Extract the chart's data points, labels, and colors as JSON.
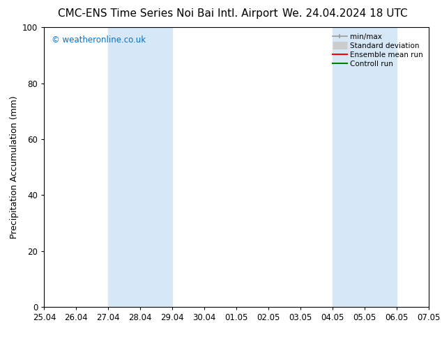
{
  "title_left": "CMC-ENS Time Series Noi Bai Intl. Airport",
  "title_right": "We. 24.04.2024 18 UTC",
  "ylabel": "Precipitation Accumulation (mm)",
  "xlim_start": 0,
  "xlim_end": 12,
  "ylim": [
    0,
    100
  ],
  "yticks": [
    0,
    20,
    40,
    60,
    80,
    100
  ],
  "xtick_labels": [
    "25.04",
    "26.04",
    "27.04",
    "28.04",
    "29.04",
    "30.04",
    "01.05",
    "02.05",
    "03.05",
    "04.05",
    "05.05",
    "06.05",
    "07.05"
  ],
  "shaded_regions": [
    {
      "x_start": 2,
      "x_end": 4,
      "color": "#d6e8f7"
    },
    {
      "x_start": 9,
      "x_end": 11,
      "color": "#d6e8f7"
    }
  ],
  "watermark_text": "© weatheronline.co.uk",
  "watermark_color": "#0070cc",
  "legend_labels": [
    "min/max",
    "Standard deviation",
    "Ensemble mean run",
    "Controll run"
  ],
  "legend_colors": [
    "#999999",
    "#cccccc",
    "#ff0000",
    "#008000"
  ],
  "bg_color": "#ffffff",
  "title_fontsize": 11,
  "axis_label_fontsize": 9,
  "tick_fontsize": 8.5,
  "watermark_fontsize": 8.5
}
